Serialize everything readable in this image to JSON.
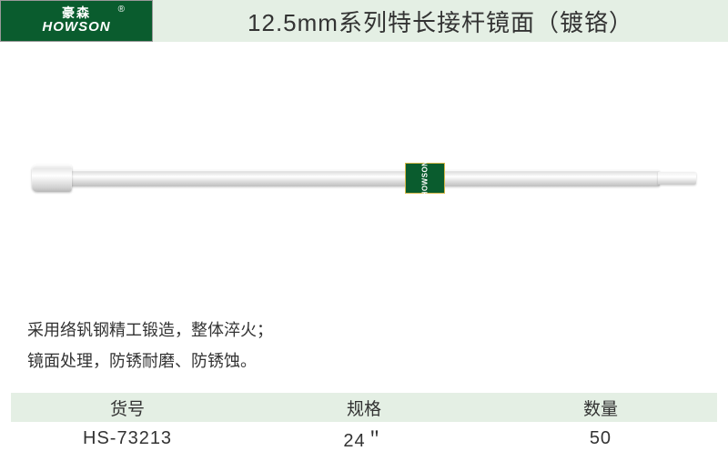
{
  "header": {
    "logo_cn": "豪森",
    "logo_en": "HOWSON",
    "logo_r": "®",
    "title": "12.5mm系列特长接杆镜面（镀铬）"
  },
  "colors": {
    "brand_green": "#0a5c2e",
    "header_bg": "#e4efe4",
    "gold_border": "#d4b84a",
    "text": "#333333",
    "page_bg": "#ffffff"
  },
  "product_label": {
    "text": "HOWSON"
  },
  "description": {
    "line1": "采用络钒钢精工锻造，整体淬火；",
    "line2": "镜面处理，防锈耐磨、防锈蚀。"
  },
  "table": {
    "headers": {
      "col1": "货号",
      "col2": "规格",
      "col3": "数量"
    },
    "row": {
      "col1": "HS-73213",
      "col2": "24＂",
      "col3": "50"
    }
  }
}
